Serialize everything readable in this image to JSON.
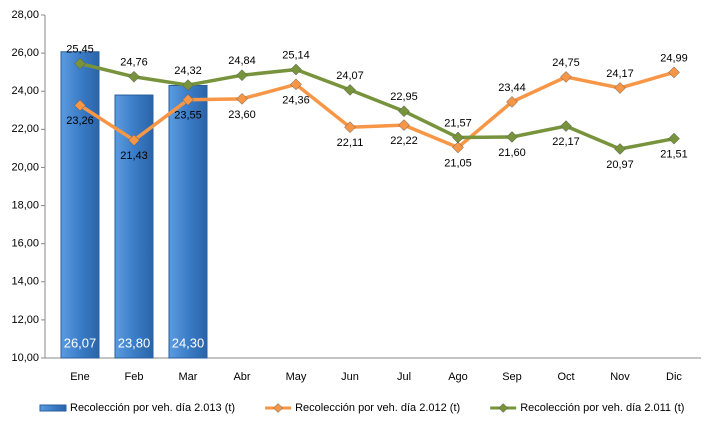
{
  "chart_data": {
    "type": "bar-line",
    "categories": [
      "Ene",
      "Feb",
      "Mar",
      "Abr",
      "May",
      "Jun",
      "Jul",
      "Ago",
      "Sep",
      "Oct",
      "Nov",
      "Dic"
    ],
    "series": [
      {
        "name": "Recolección por veh. día 2.013 (t)",
        "type": "bar",
        "color": "#3b7dc8",
        "values": [
          26.07,
          23.8,
          24.3,
          null,
          null,
          null,
          null,
          null,
          null,
          null,
          null,
          null
        ],
        "value_labels": [
          "26,07",
          "23,80",
          "24,30",
          null,
          null,
          null,
          null,
          null,
          null,
          null,
          null,
          null
        ]
      },
      {
        "name": "Recolección por veh. día 2.012 (t)",
        "type": "line",
        "color": "#f79646",
        "values": [
          23.26,
          21.43,
          23.55,
          23.6,
          24.36,
          22.11,
          22.22,
          21.05,
          23.44,
          24.75,
          24.17,
          24.99
        ],
        "value_labels": [
          "23,26",
          "21,43",
          "23,55",
          "23,60",
          "24,36",
          "22,11",
          "22,22",
          "21,05",
          "23,44",
          "24,75",
          "24,17",
          "24,99"
        ]
      },
      {
        "name": "Recolección por veh. día 2.011 (t)",
        "type": "line",
        "color": "#77933c",
        "values": [
          25.45,
          24.76,
          24.32,
          24.84,
          25.14,
          24.07,
          22.95,
          21.57,
          21.6,
          22.17,
          20.97,
          21.51
        ],
        "value_labels": [
          "25,45",
          "24,76",
          "24,32",
          "24,84",
          "25,14",
          "24,07",
          "22,95",
          "21,57",
          "21,60",
          "22,17",
          "20,97",
          "21,51"
        ]
      }
    ],
    "ylim": [
      10,
      28
    ],
    "yticks": [
      {
        "value": 10,
        "label": "10,00"
      },
      {
        "value": 12,
        "label": "12,00"
      },
      {
        "value": 14,
        "label": "14,00"
      },
      {
        "value": 16,
        "label": "16,00"
      },
      {
        "value": 18,
        "label": "18,00"
      },
      {
        "value": 20,
        "label": "20,00"
      },
      {
        "value": 22,
        "label": "22,00"
      },
      {
        "value": 24,
        "label": "24,00"
      },
      {
        "value": 26,
        "label": "26,00"
      },
      {
        "value": 28,
        "label": "28,00"
      }
    ],
    "grid": false,
    "legend": "bottom"
  }
}
